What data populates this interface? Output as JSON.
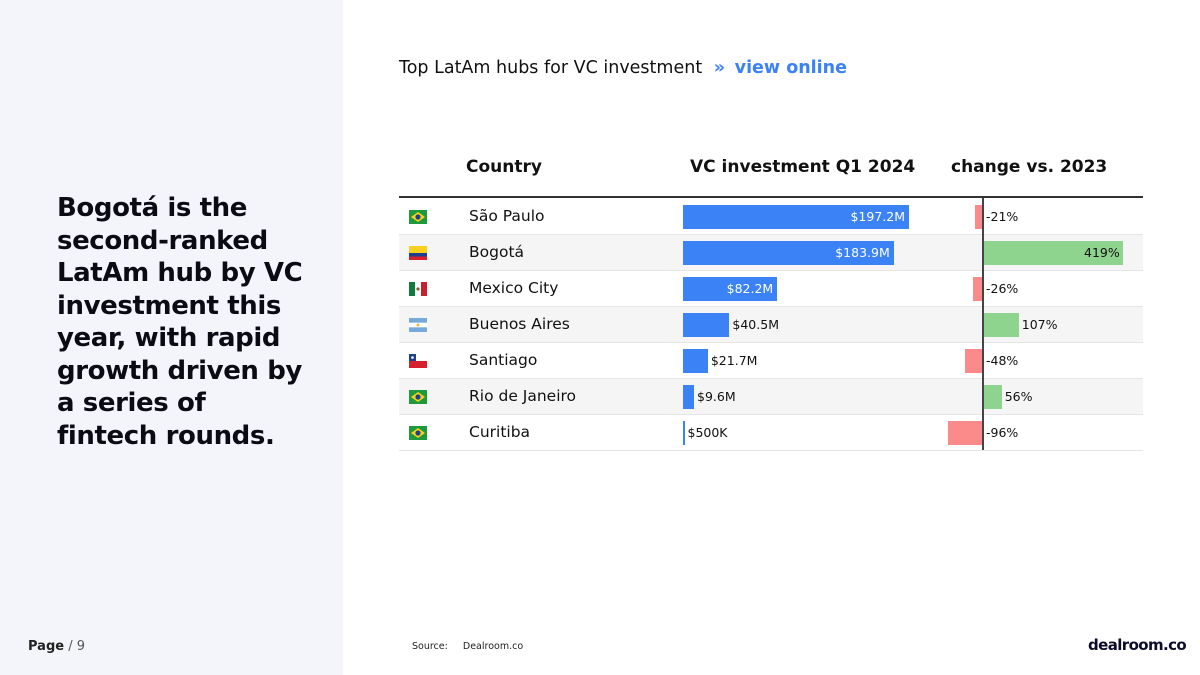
{
  "headline": "Bogotá is the second-ranked LatAm hub by VC investment this year, with rapid growth driven by a series of fintech rounds.",
  "page": {
    "label": "Page",
    "total": "/ 9"
  },
  "chart_title": {
    "text": "Top LatAm hubs for VC investment",
    "arrows": "»",
    "link": "view online"
  },
  "source": {
    "label": "Source:",
    "value": "Dealroom.co"
  },
  "brand": "dealroom.co",
  "colors": {
    "investment_bar": "#3b82f6",
    "negative_change": "#fb8a8a",
    "positive_change": "#8ed48e",
    "link": "#3b82f6"
  },
  "chart_data": {
    "type": "table",
    "columns": [
      "Country",
      "VC investment Q1 2024",
      "change vs. 2023"
    ],
    "rows": [
      {
        "city": "São Paulo",
        "flag": "brazil-flag-icon",
        "investment": 197.2,
        "investment_label": "$197.2M",
        "change": -21,
        "change_label": "-21%"
      },
      {
        "city": "Bogotá",
        "flag": "colombia-flag-icon",
        "investment": 183.9,
        "investment_label": "$183.9M",
        "change": 419,
        "change_label": "419%"
      },
      {
        "city": "Mexico City",
        "flag": "mexico-flag-icon",
        "investment": 82.2,
        "investment_label": "$82.2M",
        "change": -26,
        "change_label": "-26%"
      },
      {
        "city": "Buenos Aires",
        "flag": "argentina-flag-icon",
        "investment": 40.5,
        "investment_label": "$40.5M",
        "change": 107,
        "change_label": "107%"
      },
      {
        "city": "Santiago",
        "flag": "chile-flag-icon",
        "investment": 21.7,
        "investment_label": "$21.7M",
        "change": -48,
        "change_label": "-48%"
      },
      {
        "city": "Rio de Janeiro",
        "flag": "brazil-flag-icon",
        "investment": 9.6,
        "investment_label": "$9.6M",
        "change": 56,
        "change_label": "56%"
      },
      {
        "city": "Curitiba",
        "flag": "brazil-flag-icon",
        "investment": 0.5,
        "investment_label": "$500K",
        "change": -96,
        "change_label": "-96%"
      }
    ]
  }
}
